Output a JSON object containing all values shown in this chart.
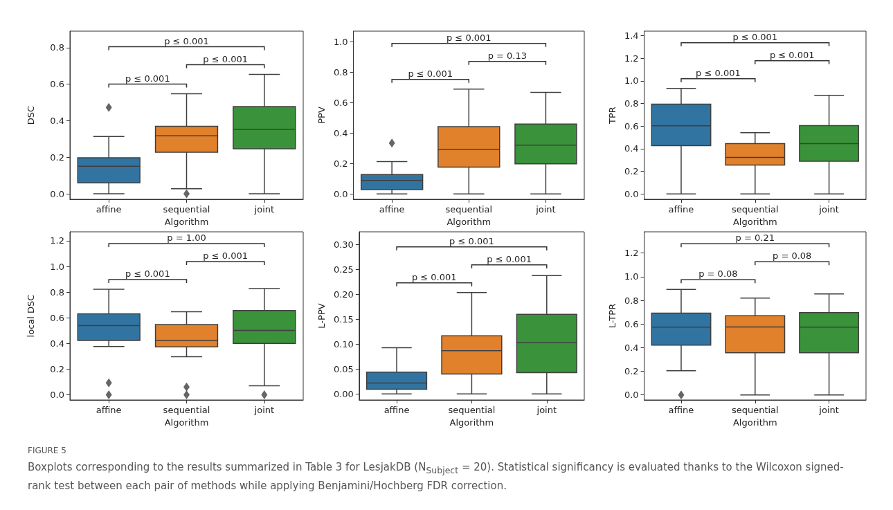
{
  "chart_data": [
    {
      "type": "box",
      "xlabel": "Algorithm",
      "ylabel": "DSC",
      "categories": [
        "affine",
        "sequential",
        "joint"
      ],
      "colors": [
        "#3274a1",
        "#e1812c",
        "#3a923a"
      ],
      "ylim": [
        -0.03,
        0.89
      ],
      "yticks": [
        {
          "value": 0,
          "label": "0.0"
        },
        {
          "value": 0.2,
          "label": "0.2"
        },
        {
          "value": 0.4,
          "label": "0.4"
        },
        {
          "value": 0.6,
          "label": "0.6"
        },
        {
          "value": 0.8,
          "label": "0.8"
        }
      ],
      "boxes": [
        {
          "low": 0,
          "q1": 0.06,
          "median": 0.151,
          "q3": 0.197,
          "high": 0.314,
          "outliers": [
            0.473
          ]
        },
        {
          "low": 0.028,
          "q1": 0.227,
          "median": 0.317,
          "q3": 0.369,
          "high": 0.547,
          "outliers": [
            0
          ]
        },
        {
          "low": 0,
          "q1": 0.246,
          "median": 0.352,
          "q3": 0.477,
          "high": 0.653
        }
      ],
      "annotations": [
        "p ≤ 0.001",
        "p ≤ 0.001",
        "p ≤ 0.001",
        "FIGURE 5",
        "Boxplots corresponding to the results summarized in Table 3 for LesjakDB (N$_{Subject}$ = 20). Statistical significancy is evaluated thanks to the Wilcoxon signed-rank test between each pair of methods while applying Benjamini/Hochberg FDR correction."
      ]
    },
    {
      "type": "box",
      "xlabel": "Algorithm",
      "ylabel": "PPV",
      "categories": [
        "affine",
        "sequential",
        "joint"
      ],
      "colors": [
        "#3274a1",
        "#e1812c",
        "#3a923a"
      ],
      "ylim": [
        -0.035,
        1.07
      ],
      "yticks": [
        {
          "value": 0,
          "label": "0.0"
        },
        {
          "value": 0.2,
          "label": "0.2"
        },
        {
          "value": 0.4,
          "label": "0.4"
        },
        {
          "value": 0.6,
          "label": "0.6"
        },
        {
          "value": 0.8,
          "label": "0.8"
        },
        {
          "value": 1,
          "label": "1.0"
        }
      ],
      "boxes": [
        {
          "low": 0,
          "q1": 0.029,
          "median": 0.089,
          "q3": 0.128,
          "high": 0.213,
          "outliers": [
            0.335
          ]
        },
        {
          "low": 0,
          "q1": 0.176,
          "median": 0.293,
          "q3": 0.442,
          "high": 0.689
        },
        {
          "low": 0,
          "q1": 0.198,
          "median": 0.321,
          "q3": 0.459,
          "high": 0.668
        }
      ],
      "annotations": [
        "p ≤ 0.001",
        "p = 0.13",
        "p ≤ 0.001"
      ]
    },
    {
      "type": "box",
      "xlabel": "Algorithm",
      "ylabel": "TPR",
      "categories": [
        "affine",
        "sequential",
        "joint"
      ],
      "colors": [
        "#3274a1",
        "#e1812c",
        "#3a923a"
      ],
      "ylim": [
        -0.047,
        1.44
      ],
      "yticks": [
        {
          "value": 0,
          "label": "0.0"
        },
        {
          "value": 0.2,
          "label": "0.2"
        },
        {
          "value": 0.4,
          "label": "0.4"
        },
        {
          "value": 0.6,
          "label": "0.6"
        },
        {
          "value": 0.8,
          "label": "0.8"
        },
        {
          "value": 1,
          "label": "1.0"
        },
        {
          "value": 1.2,
          "label": "1.2"
        },
        {
          "value": 1.4,
          "label": "1.4"
        }
      ],
      "boxes": [
        {
          "low": 0,
          "q1": 0.427,
          "median": 0.603,
          "q3": 0.795,
          "high": 0.934
        },
        {
          "low": 0,
          "q1": 0.256,
          "median": 0.323,
          "q3": 0.446,
          "high": 0.542
        },
        {
          "low": 0,
          "q1": 0.29,
          "median": 0.446,
          "q3": 0.605,
          "high": 0.873
        }
      ],
      "annotations": [
        "p ≤ 0.001",
        "p ≤ 0.001",
        "p ≤ 0.001"
      ]
    },
    {
      "type": "box",
      "xlabel": "Algorithm",
      "ylabel": "local DSC",
      "categories": [
        "affine",
        "sequential",
        "joint"
      ],
      "colors": [
        "#3274a1",
        "#e1812c",
        "#3a923a"
      ],
      "ylim": [
        -0.04,
        1.27
      ],
      "yticks": [
        {
          "value": 0,
          "label": "0.0"
        },
        {
          "value": 0.2,
          "label": "0.2"
        },
        {
          "value": 0.4,
          "label": "0.4"
        },
        {
          "value": 0.6,
          "label": "0.6"
        },
        {
          "value": 0.8,
          "label": "0.8"
        },
        {
          "value": 1,
          "label": "1.0"
        },
        {
          "value": 1.2,
          "label": "1.2"
        }
      ],
      "boxes": [
        {
          "low": 0.376,
          "q1": 0.423,
          "median": 0.54,
          "q3": 0.631,
          "high": 0.822,
          "outliers": [
            0,
            0.094
          ]
        },
        {
          "low": 0.297,
          "q1": 0.374,
          "median": 0.424,
          "q3": 0.547,
          "high": 0.648,
          "outliers": [
            0,
            0.061
          ]
        },
        {
          "low": 0.07,
          "q1": 0.401,
          "median": 0.502,
          "q3": 0.657,
          "high": 0.828,
          "outliers": [
            0
          ]
        }
      ],
      "annotations": [
        "p ≤ 0.001",
        "p ≤ 0.001",
        "p = 1.00"
      ]
    },
    {
      "type": "box",
      "xlabel": "Algorithm",
      "ylabel": "L-PPV",
      "categories": [
        "affine",
        "sequential",
        "joint"
      ],
      "colors": [
        "#3274a1",
        "#e1812c",
        "#3a923a"
      ],
      "ylim": [
        -0.012,
        0.326
      ],
      "yticks": [
        {
          "value": 0,
          "label": "0.00"
        },
        {
          "value": 0.05,
          "label": "0.05"
        },
        {
          "value": 0.1,
          "label": "0.10"
        },
        {
          "value": 0.15,
          "label": "0.15"
        },
        {
          "value": 0.2,
          "label": "0.20"
        },
        {
          "value": 0.25,
          "label": "0.25"
        },
        {
          "value": 0.3,
          "label": "0.30"
        }
      ],
      "boxes": [
        {
          "low": 0,
          "q1": 0.0097,
          "median": 0.022,
          "q3": 0.044,
          "high": 0.093
        },
        {
          "low": 0,
          "q1": 0.04,
          "median": 0.087,
          "q3": 0.117,
          "high": 0.204
        },
        {
          "low": 0,
          "q1": 0.043,
          "median": 0.103,
          "q3": 0.16,
          "high": 0.238
        }
      ],
      "annotations": [
        "p ≤ 0.001",
        "p ≤ 0.001",
        "p ≤ 0.001"
      ]
    },
    {
      "type": "box",
      "xlabel": "Algorithm",
      "ylabel": "L-TPR",
      "categories": [
        "affine",
        "sequential",
        "joint"
      ],
      "colors": [
        "#3274a1",
        "#e1812c",
        "#3a923a"
      ],
      "ylim": [
        -0.043,
        1.38
      ],
      "yticks": [
        {
          "value": 0,
          "label": "0.0"
        },
        {
          "value": 0.2,
          "label": "0.2"
        },
        {
          "value": 0.4,
          "label": "0.4"
        },
        {
          "value": 0.6,
          "label": "0.6"
        },
        {
          "value": 0.8,
          "label": "0.8"
        },
        {
          "value": 1,
          "label": "1.0"
        },
        {
          "value": 1.2,
          "label": "1.2"
        }
      ],
      "boxes": [
        {
          "low": 0.205,
          "q1": 0.421,
          "median": 0.573,
          "q3": 0.692,
          "high": 0.892,
          "outliers": [
            0
          ]
        },
        {
          "low": 0,
          "q1": 0.357,
          "median": 0.575,
          "q3": 0.67,
          "high": 0.82
        },
        {
          "low": 0,
          "q1": 0.357,
          "median": 0.573,
          "q3": 0.696,
          "high": 0.855
        }
      ],
      "annotations": [
        "p = 0.08",
        "p = 0.08",
        "p = 0.21"
      ]
    }
  ]
}
